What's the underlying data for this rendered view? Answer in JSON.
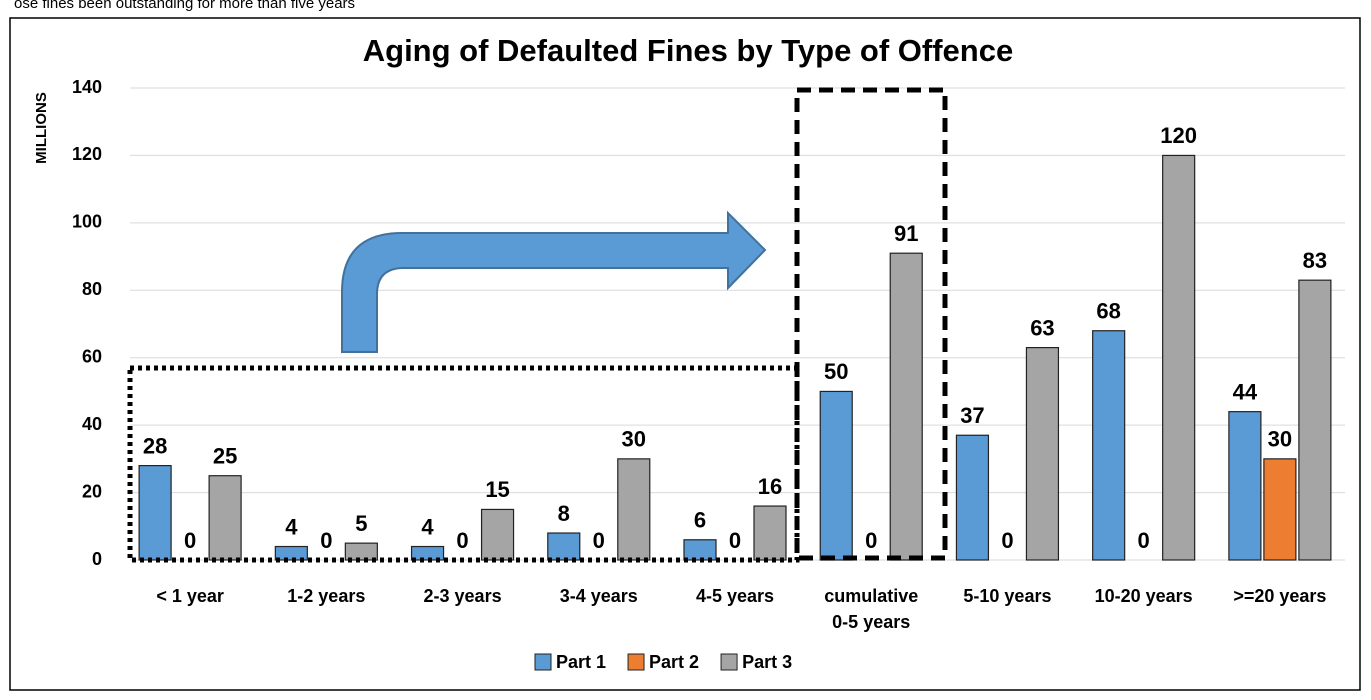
{
  "caption": "ose fines been outstanding for more than five years",
  "chart_data": {
    "type": "bar",
    "title": "Aging of Defaulted Fines by Type of Offence",
    "y_label": "MILLIONS",
    "categories": [
      "< 1 year",
      "1-2 years",
      "2-3 years",
      "3-4 years",
      "4-5 years",
      "cumulative\n0-5 years",
      "5-10 years",
      "10-20 years",
      ">=20 years"
    ],
    "series": [
      {
        "name": "Part 1",
        "color": "#5b9bd5",
        "values": [
          28,
          4,
          4,
          8,
          6,
          50,
          37,
          68,
          44
        ]
      },
      {
        "name": "Part 2",
        "color": "#ed7d31",
        "values": [
          0,
          0,
          0,
          0,
          0,
          0,
          0,
          0,
          30
        ]
      },
      {
        "name": "Part 3",
        "color": "#a5a5a5",
        "values": [
          25,
          5,
          15,
          30,
          16,
          91,
          63,
          120,
          83
        ]
      }
    ],
    "ylim": [
      0,
      140
    ],
    "yticks": [
      0,
      20,
      40,
      60,
      80,
      100,
      120,
      140
    ],
    "grid": true,
    "legend": "bottom"
  }
}
